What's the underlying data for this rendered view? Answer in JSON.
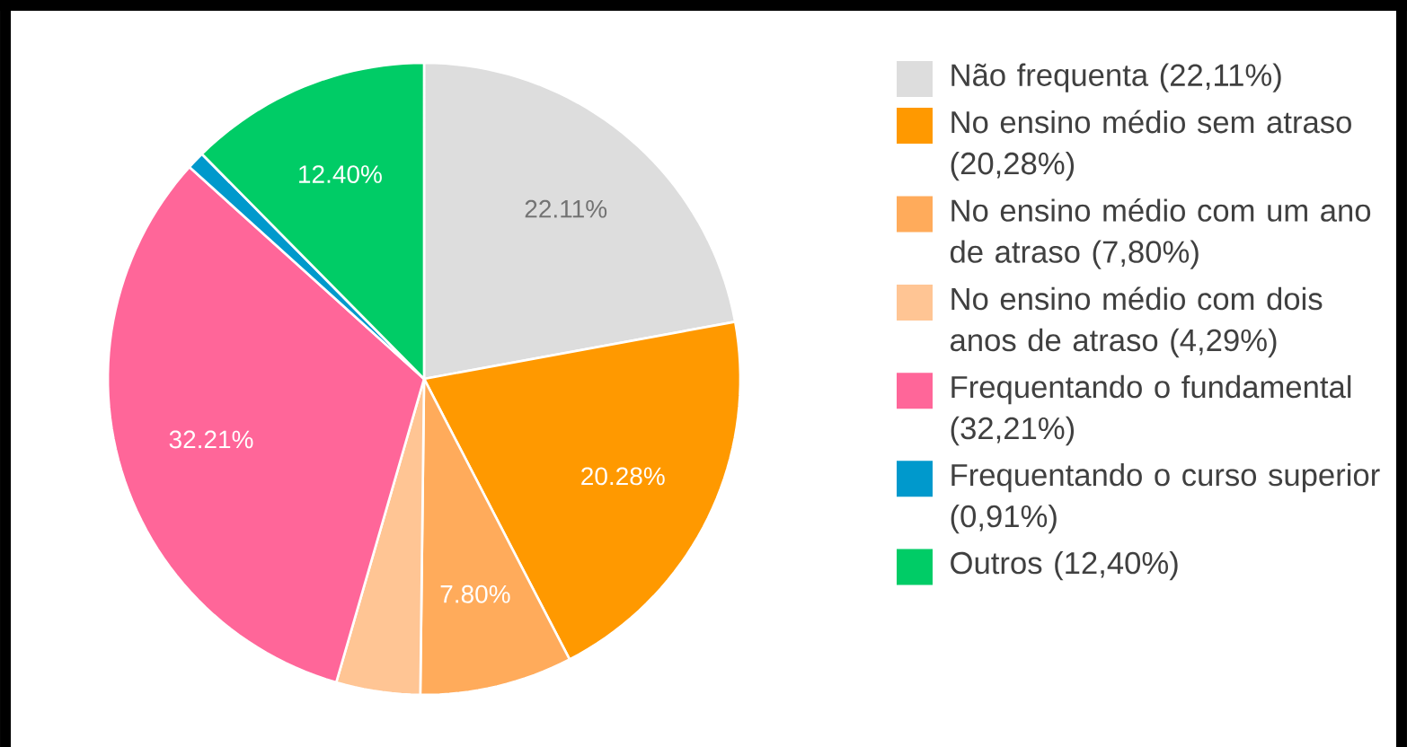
{
  "chart_data": {
    "type": "pie",
    "categories": [
      "Não frequenta (22,11%)",
      "No ensino médio sem atraso (20,28%)",
      "No ensino médio com um ano de atraso (7,80%)",
      "No ensino médio com dois anos de atraso (4,29%)",
      "Frequentando o fundamental (32,21%)",
      "Frequentando o curso superior (0,91%)",
      "Outros (12,40%)"
    ],
    "values": [
      22.11,
      20.28,
      7.8,
      4.29,
      32.21,
      0.91,
      12.4
    ],
    "colors": [
      "#dddddd",
      "#ff9900",
      "#ffab5b",
      "#ffc594",
      "#ff6699",
      "#0099cc",
      "#00cc66"
    ],
    "value_labels": [
      "22.11%",
      "20.28%",
      "7.80%",
      null,
      "32.21%",
      null,
      "12.40%"
    ],
    "legend": "right"
  }
}
